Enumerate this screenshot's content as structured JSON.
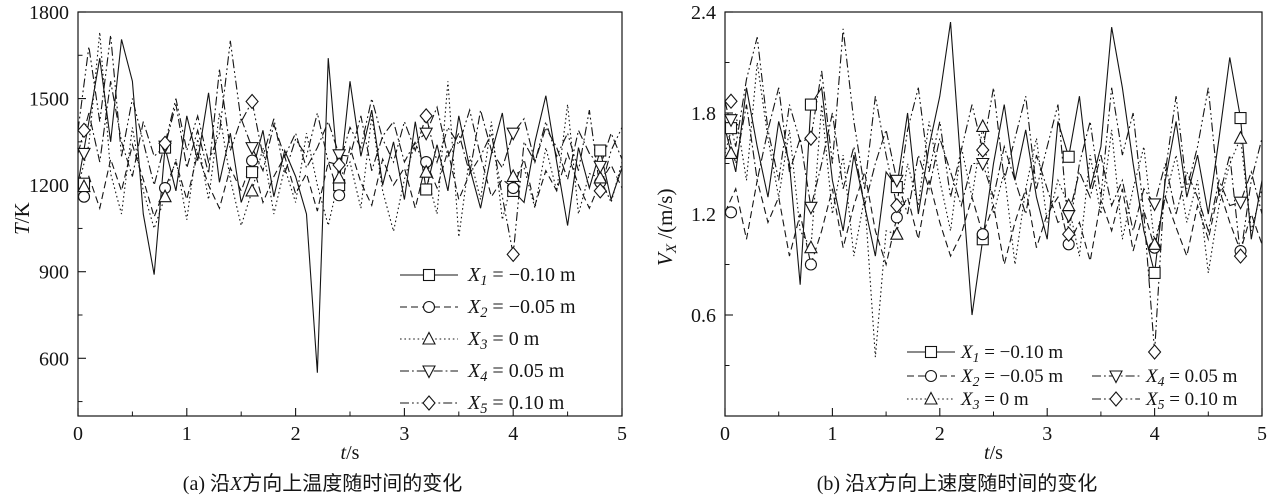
{
  "background": "#ffffff",
  "ink": "#141414",
  "chart_data": [
    {
      "type": "line",
      "panel": "a",
      "caption": {
        "pre": "(a) 沿",
        "var": "X",
        "post": "方向上温度随时间的变化"
      },
      "xlabel": {
        "var": "t",
        "sub": "",
        "rest": "/s"
      },
      "ylabel": {
        "var": "T",
        "sub": "",
        "rest": "/K"
      },
      "xlim": [
        0,
        5
      ],
      "ylim": [
        400,
        1800
      ],
      "xticks": [
        0,
        1,
        2,
        3,
        4,
        5
      ],
      "xtick_labels": [
        "0",
        "1",
        "2",
        "3",
        "4",
        "5"
      ],
      "yticks": [
        600,
        900,
        1200,
        1500,
        1800
      ],
      "ytick_labels": [
        "600",
        "900",
        "1200",
        "1500",
        "1800"
      ],
      "x_minor_step": 0.5,
      "y_minor_step": 150,
      "x_start": 0,
      "x_step": 0.1,
      "grid": false,
      "legend": {
        "position": "inside-lower-right",
        "columns": 1
      },
      "marker_every": 8,
      "series": [
        {
          "name": "X1",
          "var": "X",
          "sub": "1",
          "label_rest": " = −0.10 m",
          "line": "solid",
          "marker": "square",
          "legend_col": 0,
          "legend_row": 0,
          "values": [
            1205,
            1420,
            1640,
            1350,
            1705,
            1560,
            1100,
            890,
            1330,
            1180,
            1440,
            1285,
            1520,
            1210,
            1380,
            1140,
            1245,
            1390,
            1160,
            1320,
            1230,
            1100,
            550,
            1640,
            1200,
            1560,
            1300,
            1460,
            1200,
            1350,
            1150,
            1420,
            1185,
            1340,
            1180,
            1440,
            1260,
            1120,
            1310,
            1450,
            1180,
            1140,
            1350,
            1510,
            1280,
            1060,
            1330,
            1190,
            1320,
            1150,
            1260
          ]
        },
        {
          "name": "X2",
          "var": "X",
          "sub": "2",
          "label_rest": " = −0.05 m",
          "line": "dashed",
          "marker": "circle",
          "legend_col": 0,
          "legend_row": 1,
          "values": [
            1160,
            1230,
            1120,
            1290,
            1180,
            1340,
            1220,
            1090,
            1190,
            1280,
            1150,
            1310,
            1200,
            1120,
            1260,
            1180,
            1285,
            1140,
            1230,
            1300,
            1170,
            1240,
            1110,
            1280,
            1165,
            1330,
            1210,
            1130,
            1290,
            1200,
            1260,
            1120,
            1280,
            1190,
            1320,
            1150,
            1240,
            1300,
            1160,
            1220,
            1190,
            1290,
            1130,
            1250,
            1180,
            1310,
            1200,
            1120,
            1210,
            1270,
            1190
          ]
        },
        {
          "name": "X3",
          "var": "X",
          "sub": "3",
          "label_rest": " = 0 m",
          "line": "dotted",
          "marker": "triangle-up",
          "legend_col": 0,
          "legend_row": 2,
          "values": [
            1195,
            1340,
            1730,
            1240,
            1100,
            1400,
            1180,
            1050,
            1160,
            1290,
            1080,
            1360,
            1150,
            1450,
            1220,
            1060,
            1180,
            1330,
            1100,
            1260,
            1140,
            1380,
            1200,
            1060,
            1225,
            1280,
            1120,
            1440,
            1180,
            1040,
            1220,
            1350,
            1245,
            1100,
            1560,
            1020,
            1300,
            1150,
            1420,
            1080,
            1230,
            1260,
            1120,
            1330,
            1180,
            1480,
            1100,
            1240,
            1225,
            1140,
            1280
          ]
        },
        {
          "name": "X4",
          "var": "X",
          "sub": "4",
          "label_rest": " = 0.05 m",
          "line": "dash-dot",
          "marker": "triangle-down",
          "legend_col": 0,
          "legend_row": 3,
          "values": [
            1310,
            1450,
            1280,
            1560,
            1350,
            1230,
            1420,
            1300,
            1335,
            1480,
            1260,
            1390,
            1240,
            1600,
            1320,
            1430,
            1330,
            1250,
            1410,
            1300,
            1380,
            1260,
            1330,
            1420,
            1305,
            1300,
            1440,
            1250,
            1370,
            1420,
            1280,
            1350,
            1380,
            1470,
            1300,
            1380,
            1240,
            1460,
            1320,
            1260,
            1380,
            1430,
            1280,
            1400,
            1330,
            1220,
            1390,
            1310,
            1265,
            1380,
            1290
          ]
        },
        {
          "name": "X5",
          "var": "X",
          "sub": "5",
          "label_rest": " = 0.10 m",
          "line": "dash-dot-dot",
          "marker": "diamond",
          "legend_col": 0,
          "legend_row": 4,
          "values": [
            1390,
            1680,
            1420,
            1720,
            1300,
            1500,
            1350,
            1200,
            1345,
            1500,
            1320,
            1440,
            1280,
            1380,
            1700,
            1420,
            1490,
            1300,
            1430,
            1240,
            1360,
            1300,
            1450,
            1280,
            1270,
            1400,
            1330,
            1500,
            1360,
            1280,
            1420,
            1320,
            1440,
            1280,
            1400,
            1340,
            1460,
            1300,
            1380,
            1160,
            960,
            1350,
            1280,
            1420,
            1300,
            1380,
            1250,
            1460,
            1180,
            1320,
            1400
          ]
        }
      ]
    },
    {
      "type": "line",
      "panel": "b",
      "caption": {
        "pre": "(b) 沿",
        "var": "X",
        "post": "方向上速度随时间的变化"
      },
      "xlabel": {
        "var": "t",
        "sub": "",
        "rest": "/s"
      },
      "ylabel": {
        "var": "V",
        "sub": "X",
        "rest": " /(m/s)"
      },
      "xlim": [
        0,
        5
      ],
      "ylim": [
        0,
        2.4
      ],
      "xticks": [
        0,
        1,
        2,
        3,
        4,
        5
      ],
      "xtick_labels": [
        "0",
        "1",
        "2",
        "3",
        "4",
        "5"
      ],
      "yticks": [
        0.6,
        1.2,
        1.8,
        2.4
      ],
      "ytick_labels": [
        "0.6",
        "1.2",
        "1.8",
        "2.4"
      ],
      "x_minor_step": 0.5,
      "y_minor_step": 0.3,
      "x_start": 0,
      "x_step": 0.1,
      "grid": false,
      "legend": {
        "position": "inside-lower-right",
        "columns": 2
      },
      "marker_every": 8,
      "series": [
        {
          "name": "X1",
          "var": "X",
          "sub": "1",
          "label_rest": " = −0.10 m",
          "line": "solid",
          "marker": "square",
          "legend_col": 0,
          "legend_row": 0,
          "values": [
            1.71,
            1.45,
            1.95,
            1.6,
            1.3,
            1.75,
            1.5,
            0.78,
            1.85,
            1.95,
            1.4,
            1.1,
            1.55,
            1.25,
            0.95,
            1.45,
            1.36,
            1.8,
            1.2,
            1.6,
            1.9,
            2.34,
            1.45,
            0.6,
            1.05,
            1.5,
            1.85,
            1.4,
            1.7,
            1.3,
            1.05,
            1.75,
            1.54,
            1.9,
            1.35,
            1.6,
            2.31,
            1.95,
            1.5,
            1.1,
            0.85,
            1.4,
            1.75,
            1.3,
            1.55,
            1.2,
            1.65,
            2.13,
            1.77,
            1.05,
            1.4
          ]
        },
        {
          "name": "X2",
          "var": "X",
          "sub": "2",
          "label_rest": " = −0.05 m",
          "line": "dashed",
          "marker": "circle",
          "legend_col": 0,
          "legend_row": 1,
          "values": [
            1.21,
            1.35,
            1.05,
            1.4,
            1.15,
            1.3,
            0.95,
            1.2,
            0.9,
            1.1,
            1.35,
            1.0,
            1.25,
            1.45,
            1.1,
            0.9,
            1.18,
            1.3,
            1.05,
            1.4,
            1.15,
            0.95,
            1.08,
            1.3,
            1.08,
            1.25,
            0.9,
            1.15,
            1.35,
            1.0,
            1.2,
            1.3,
            1.02,
            1.15,
            0.92,
            1.28,
            1.1,
            1.35,
            0.98,
            1.22,
            1.0,
            1.3,
            1.12,
            0.95,
            1.25,
            1.05,
            1.35,
            1.15,
            0.98,
            1.2,
            1.02
          ]
        },
        {
          "name": "X3",
          "var": "X",
          "sub": "3",
          "label_rest": " = 0 m",
          "line": "dotted",
          "marker": "triangle-up",
          "legend_col": 0,
          "legend_row": 2,
          "values": [
            1.56,
            1.8,
            1.4,
            2.1,
            1.65,
            1.3,
            1.7,
            1.1,
            1.0,
            1.85,
            1.2,
            1.55,
            0.95,
            1.3,
            0.35,
            1.1,
            1.08,
            1.5,
            1.25,
            1.75,
            1.4,
            1.1,
            1.6,
            1.3,
            1.72,
            1.2,
            1.45,
            0.9,
            1.35,
            1.65,
            1.15,
            1.4,
            1.25,
            0.95,
            1.55,
            1.2,
            1.7,
            1.05,
            1.35,
            1.6,
            1.02,
            1.3,
            1.55,
            1.15,
            1.4,
            0.85,
            1.25,
            1.5,
            1.65,
            1.1,
            1.35
          ]
        },
        {
          "name": "X4",
          "var": "X",
          "sub": "4",
          "label_rest": " = 0.05 m",
          "line": "dash-dot",
          "marker": "triangle-down",
          "legend_col": 1,
          "legend_row": 1,
          "values": [
            1.76,
            1.5,
            1.85,
            1.4,
            1.7,
            1.95,
            1.45,
            1.65,
            1.24,
            1.5,
            1.8,
            1.35,
            1.6,
            1.25,
            1.5,
            1.7,
            1.4,
            1.2,
            1.55,
            1.35,
            1.65,
            1.45,
            1.25,
            1.5,
            1.5,
            1.3,
            1.6,
            1.4,
            1.2,
            1.55,
            1.35,
            1.15,
            1.19,
            1.45,
            1.3,
            1.55,
            1.25,
            1.4,
            1.1,
            1.35,
            1.26,
            1.5,
            1.2,
            1.45,
            1.3,
            1.1,
            1.4,
            1.25,
            1.27,
            1.45,
            1.2
          ]
        },
        {
          "name": "X5",
          "var": "X",
          "sub": "5",
          "label_rest": " = 0.10 m",
          "line": "dash-dot-dot",
          "marker": "diamond",
          "legend_col": 1,
          "legend_row": 2,
          "values": [
            1.87,
            1.6,
            2.0,
            2.25,
            1.7,
            1.4,
            1.85,
            1.63,
            1.65,
            2.05,
            1.5,
            2.3,
            1.75,
            1.35,
            1.9,
            1.55,
            1.25,
            1.7,
            1.95,
            1.45,
            1.75,
            1.3,
            1.58,
            1.85,
            1.58,
            1.95,
            1.4,
            1.65,
            1.9,
            1.35,
            1.6,
            1.85,
            1.08,
            1.5,
            1.75,
            1.3,
            1.95,
            1.55,
            1.8,
            1.2,
            0.38,
            1.45,
            1.9,
            1.35,
            1.6,
            1.95,
            1.3,
            1.55,
            0.95,
            1.4,
            1.65
          ]
        }
      ]
    }
  ]
}
